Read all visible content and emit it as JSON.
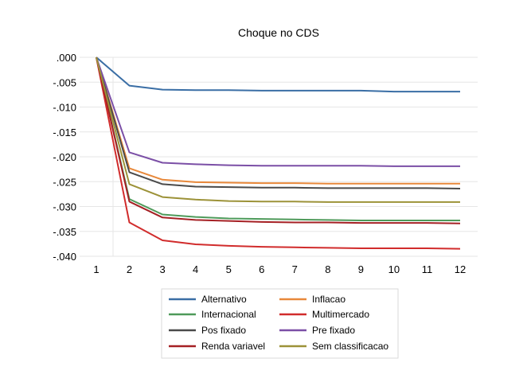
{
  "chart_data": {
    "type": "line",
    "title": "Choque no CDS",
    "xlabel": "",
    "ylabel": "",
    "x": [
      1,
      2,
      3,
      4,
      5,
      6,
      7,
      8,
      9,
      10,
      11,
      12
    ],
    "x_tick_labels": [
      "1",
      "2",
      "3",
      "4",
      "5",
      "6",
      "7",
      "8",
      "9",
      "10",
      "11",
      "12"
    ],
    "ylim": [
      -0.04,
      0.0
    ],
    "y_ticks": [
      0.0,
      -0.005,
      -0.01,
      -0.015,
      -0.02,
      -0.025,
      -0.03,
      -0.035,
      -0.04
    ],
    "y_tick_labels": [
      ".000",
      "-.005",
      "-.010",
      "-.015",
      "-.020",
      "-.025",
      "-.030",
      "-.035",
      "-.040"
    ],
    "grid": "horizontal",
    "legend_position": "bottom",
    "series": [
      {
        "name": "Alternativo",
        "color": "#3a6ea5",
        "values": [
          0.0,
          -0.0057,
          -0.0065,
          -0.0066,
          -0.0066,
          -0.0067,
          -0.0067,
          -0.0067,
          -0.0067,
          -0.0069,
          -0.0069,
          -0.0069
        ]
      },
      {
        "name": "Inflacao",
        "color": "#e8883a",
        "values": [
          0.0,
          -0.0223,
          -0.0246,
          -0.0251,
          -0.0252,
          -0.0253,
          -0.0253,
          -0.0254,
          -0.0254,
          -0.0254,
          -0.0254,
          -0.0254
        ]
      },
      {
        "name": "Internacional",
        "color": "#4e9a5a",
        "values": [
          0.0,
          -0.0285,
          -0.0316,
          -0.0321,
          -0.0324,
          -0.0325,
          -0.0326,
          -0.0327,
          -0.0328,
          -0.0328,
          -0.0328,
          -0.0328
        ]
      },
      {
        "name": "Multimercado",
        "color": "#d12c2c",
        "values": [
          0.0,
          -0.0332,
          -0.0368,
          -0.0376,
          -0.0379,
          -0.0381,
          -0.0382,
          -0.0383,
          -0.0384,
          -0.0384,
          -0.0384,
          -0.0385
        ]
      },
      {
        "name": "Pos fixado",
        "color": "#4a4a4a",
        "values": [
          0.0,
          -0.0231,
          -0.0255,
          -0.026,
          -0.0261,
          -0.0262,
          -0.0262,
          -0.0263,
          -0.0263,
          -0.0263,
          -0.0263,
          -0.0264
        ]
      },
      {
        "name": "Pre fixado",
        "color": "#7b4fa6",
        "values": [
          0.0,
          -0.0191,
          -0.0212,
          -0.0215,
          -0.0217,
          -0.0218,
          -0.0218,
          -0.0218,
          -0.0218,
          -0.0219,
          -0.0219,
          -0.0219
        ]
      },
      {
        "name": "Renda variavel",
        "color": "#a52024",
        "values": [
          0.0,
          -0.029,
          -0.0322,
          -0.0327,
          -0.0329,
          -0.0331,
          -0.0332,
          -0.0332,
          -0.0333,
          -0.0333,
          -0.0333,
          -0.0334
        ]
      },
      {
        "name": "Sem classificacao",
        "color": "#9c9238",
        "values": [
          0.0,
          -0.0255,
          -0.0281,
          -0.0286,
          -0.0289,
          -0.029,
          -0.029,
          -0.0291,
          -0.0291,
          -0.0291,
          -0.0291,
          -0.0291
        ]
      }
    ]
  }
}
